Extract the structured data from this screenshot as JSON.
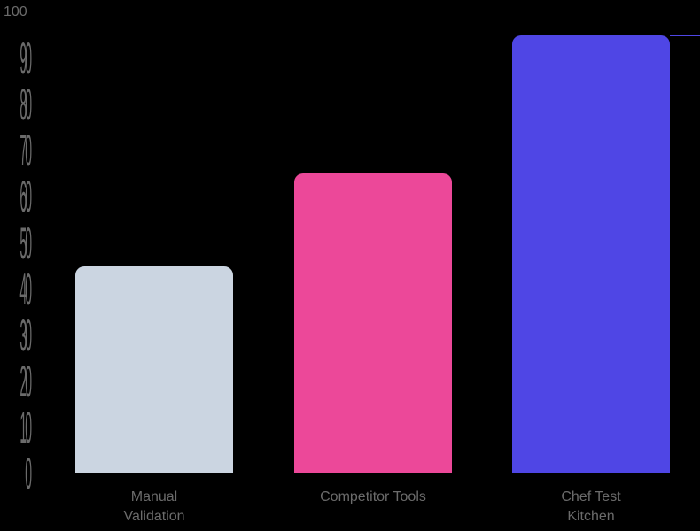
{
  "chart_data": {
    "type": "bar",
    "title": "",
    "xlabel": "",
    "ylabel": "",
    "ylim": [
      0,
      100
    ],
    "yticks": [
      0,
      10,
      20,
      30,
      40,
      50,
      60,
      70,
      80,
      90,
      100
    ],
    "categories": [
      "Manual Validation",
      "Competitor Tools",
      "Chef Test Kitchen"
    ],
    "category_lines": [
      [
        "Manual",
        "Validation"
      ],
      [
        "Competitor Tools"
      ],
      [
        "Chef Test",
        "Kitchen"
      ]
    ],
    "values": [
      45,
      65,
      95
    ],
    "colors": [
      "#cbd5e1",
      "#ec4899",
      "#4f46e5"
    ],
    "grid": false,
    "legend": "none"
  },
  "axis": {
    "top_label": "100",
    "text_color": "#6b6b6b"
  },
  "background": "#000000"
}
